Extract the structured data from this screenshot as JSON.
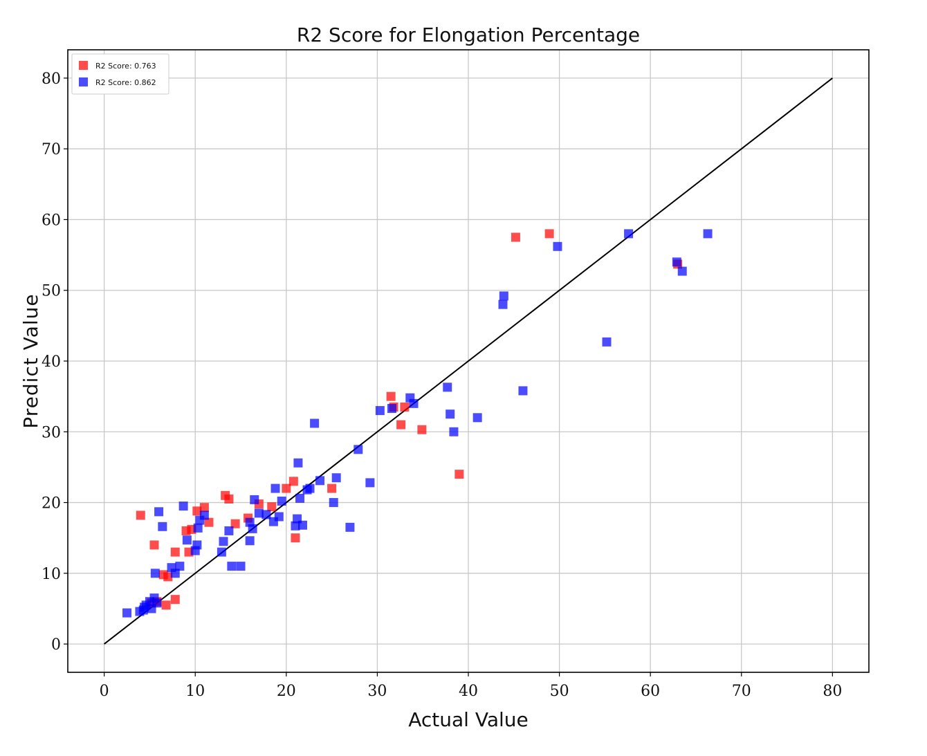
{
  "chart_data": {
    "type": "scatter",
    "title": "R2 Score for Elongation Percentage",
    "xlabel": "Actual Value",
    "ylabel": "Predict Value",
    "xlim": [
      -4,
      84
    ],
    "ylim": [
      -4,
      84
    ],
    "xticks": [
      0,
      10,
      20,
      30,
      40,
      50,
      60,
      70,
      80
    ],
    "yticks": [
      0,
      10,
      20,
      30,
      40,
      50,
      60,
      70,
      80
    ],
    "grid": true,
    "legend_position": "top-left",
    "reference_line": {
      "from": [
        0,
        0
      ],
      "to": [
        80,
        80
      ],
      "color": "#000000"
    },
    "series": [
      {
        "name": "R2 Score: 0.763",
        "color": "#ff0000",
        "points": [
          [
            4,
            18.2
          ],
          [
            5.5,
            14
          ],
          [
            6.5,
            9.8
          ],
          [
            7,
            9.5
          ],
          [
            6.8,
            5.5
          ],
          [
            5.8,
            6
          ],
          [
            7.8,
            13
          ],
          [
            9,
            16
          ],
          [
            9.6,
            16.2
          ],
          [
            9.3,
            13
          ],
          [
            10.2,
            18.8
          ],
          [
            11,
            19.3
          ],
          [
            11.5,
            17.2
          ],
          [
            13.3,
            21
          ],
          [
            13.7,
            20.5
          ],
          [
            14.4,
            17
          ],
          [
            15.8,
            17.8
          ],
          [
            17,
            19.8
          ],
          [
            18.4,
            19.4
          ],
          [
            20,
            22
          ],
          [
            20.8,
            23
          ],
          [
            21,
            15
          ],
          [
            25,
            22
          ],
          [
            31.5,
            35
          ],
          [
            31.8,
            33.5
          ],
          [
            32.6,
            31
          ],
          [
            33,
            33.5
          ],
          [
            34.9,
            30.3
          ],
          [
            39,
            24
          ],
          [
            45.2,
            57.5
          ],
          [
            48.9,
            58
          ],
          [
            63,
            53.7
          ],
          [
            7.8,
            6.3
          ],
          [
            5.2,
            5.8
          ]
        ]
      },
      {
        "name": "R2 Score: 0.862",
        "color": "#0000ff",
        "points": [
          [
            2.5,
            4.4
          ],
          [
            3.9,
            4.6
          ],
          [
            4.3,
            4.8
          ],
          [
            4.6,
            5.5
          ],
          [
            5,
            6
          ],
          [
            5.2,
            5
          ],
          [
            5.5,
            6.5
          ],
          [
            5.8,
            5.8
          ],
          [
            4.4,
            5.2
          ],
          [
            5.6,
            10
          ],
          [
            6,
            18.7
          ],
          [
            6.4,
            16.6
          ],
          [
            7.4,
            10.8
          ],
          [
            7.8,
            10
          ],
          [
            8.3,
            11
          ],
          [
            8.7,
            19.5
          ],
          [
            9.1,
            14.7
          ],
          [
            10,
            13.2
          ],
          [
            10.2,
            14
          ],
          [
            10.3,
            16.4
          ],
          [
            10.5,
            17.5
          ],
          [
            11,
            18.2
          ],
          [
            12.9,
            13
          ],
          [
            13.1,
            14.5
          ],
          [
            13.7,
            16
          ],
          [
            14,
            11
          ],
          [
            15,
            11
          ],
          [
            16,
            14.6
          ],
          [
            16,
            17.2
          ],
          [
            16.3,
            16.3
          ],
          [
            16.5,
            20.4
          ],
          [
            17,
            18.5
          ],
          [
            17.8,
            18.3
          ],
          [
            18.6,
            17.3
          ],
          [
            18.8,
            22
          ],
          [
            19.2,
            18
          ],
          [
            19.5,
            20.2
          ],
          [
            21,
            16.7
          ],
          [
            21.2,
            17.7
          ],
          [
            21.3,
            25.6
          ],
          [
            21.5,
            20.6
          ],
          [
            21.8,
            16.8
          ],
          [
            22.3,
            21.8
          ],
          [
            22.6,
            22
          ],
          [
            23.1,
            31.2
          ],
          [
            23.7,
            23.1
          ],
          [
            25.2,
            20
          ],
          [
            25.5,
            23.5
          ],
          [
            27,
            16.5
          ],
          [
            27.9,
            27.5
          ],
          [
            29.2,
            22.8
          ],
          [
            30.3,
            33
          ],
          [
            31.6,
            33.3
          ],
          [
            33.6,
            34.8
          ],
          [
            34,
            34
          ],
          [
            37.7,
            36.3
          ],
          [
            38,
            32.5
          ],
          [
            38.4,
            30
          ],
          [
            41,
            32
          ],
          [
            43.8,
            48
          ],
          [
            43.9,
            49.2
          ],
          [
            46,
            35.8
          ],
          [
            49.8,
            56.2
          ],
          [
            55.2,
            42.7
          ],
          [
            57.6,
            58
          ],
          [
            62.9,
            54
          ],
          [
            63.5,
            52.7
          ],
          [
            66.3,
            58
          ]
        ]
      }
    ]
  }
}
